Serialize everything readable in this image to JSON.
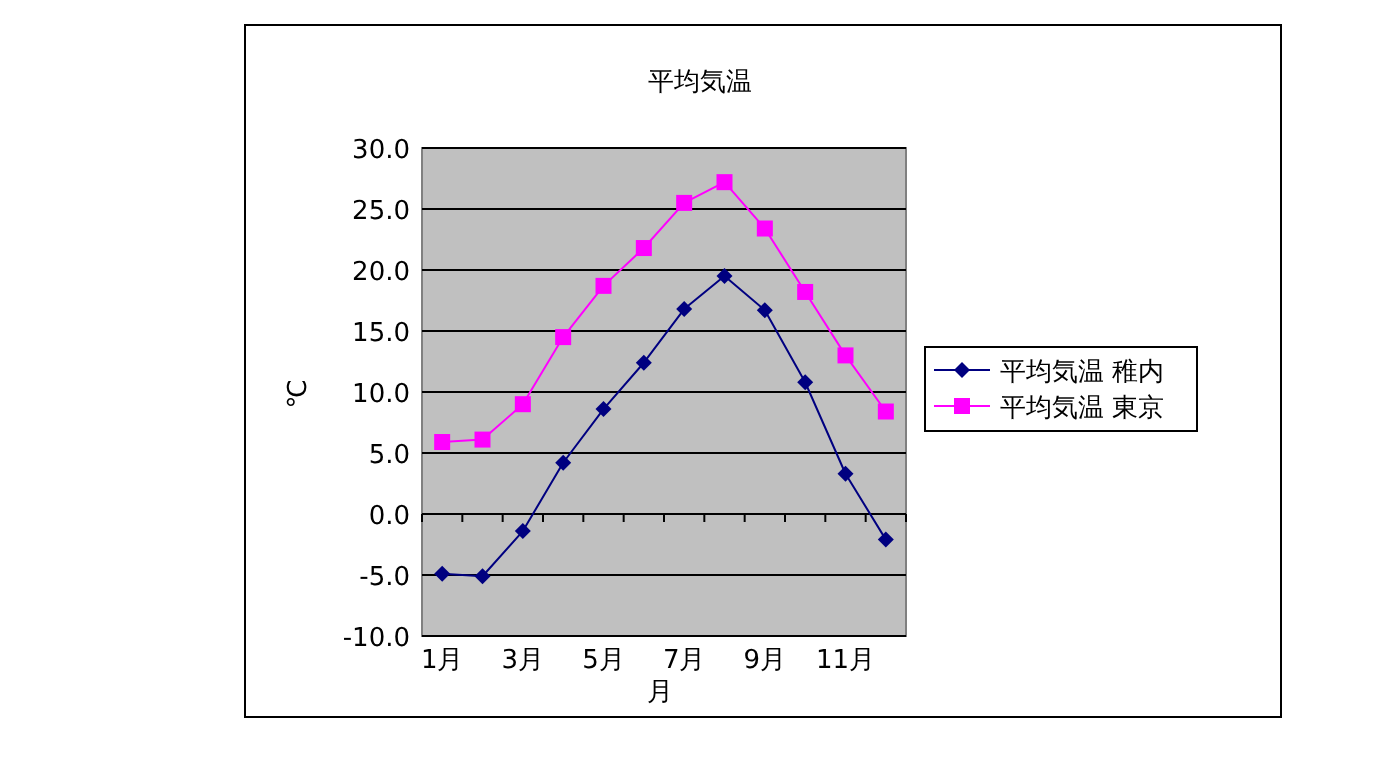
{
  "chart_data": {
    "type": "line",
    "title": "平均気温",
    "xlabel": "月",
    "ylabel": "℃",
    "categories": [
      "1月",
      null,
      "3月",
      null,
      "5月",
      null,
      "7月",
      null,
      "9月",
      null,
      "11月",
      null
    ],
    "series": [
      {
        "name": "平均気温 稚内",
        "color": "#000080",
        "marker": "diamond",
        "values": [
          -4.9,
          -5.1,
          -1.4,
          4.2,
          8.6,
          12.4,
          16.8,
          19.5,
          16.7,
          10.8,
          3.3,
          -2.1
        ]
      },
      {
        "name": "平均気温 東京",
        "color": "#ff00ff",
        "marker": "square",
        "values": [
          5.9,
          6.1,
          9.0,
          14.5,
          18.7,
          21.8,
          25.5,
          27.2,
          23.4,
          18.2,
          13.0,
          8.4
        ]
      }
    ],
    "ylim": [
      -10,
      30
    ],
    "yticks": [
      {
        "value": -10,
        "label": "-10.0"
      },
      {
        "value": -5,
        "label": "-5.0"
      },
      {
        "value": 0,
        "label": "0.0"
      },
      {
        "value": 5,
        "label": "5.0"
      },
      {
        "value": 10,
        "label": "10.0"
      },
      {
        "value": 15,
        "label": "15.0"
      },
      {
        "value": 20,
        "label": "20.0"
      },
      {
        "value": 25,
        "label": "25.0"
      },
      {
        "value": 30,
        "label": "30.0"
      }
    ],
    "grid": "y",
    "legend": "right"
  }
}
